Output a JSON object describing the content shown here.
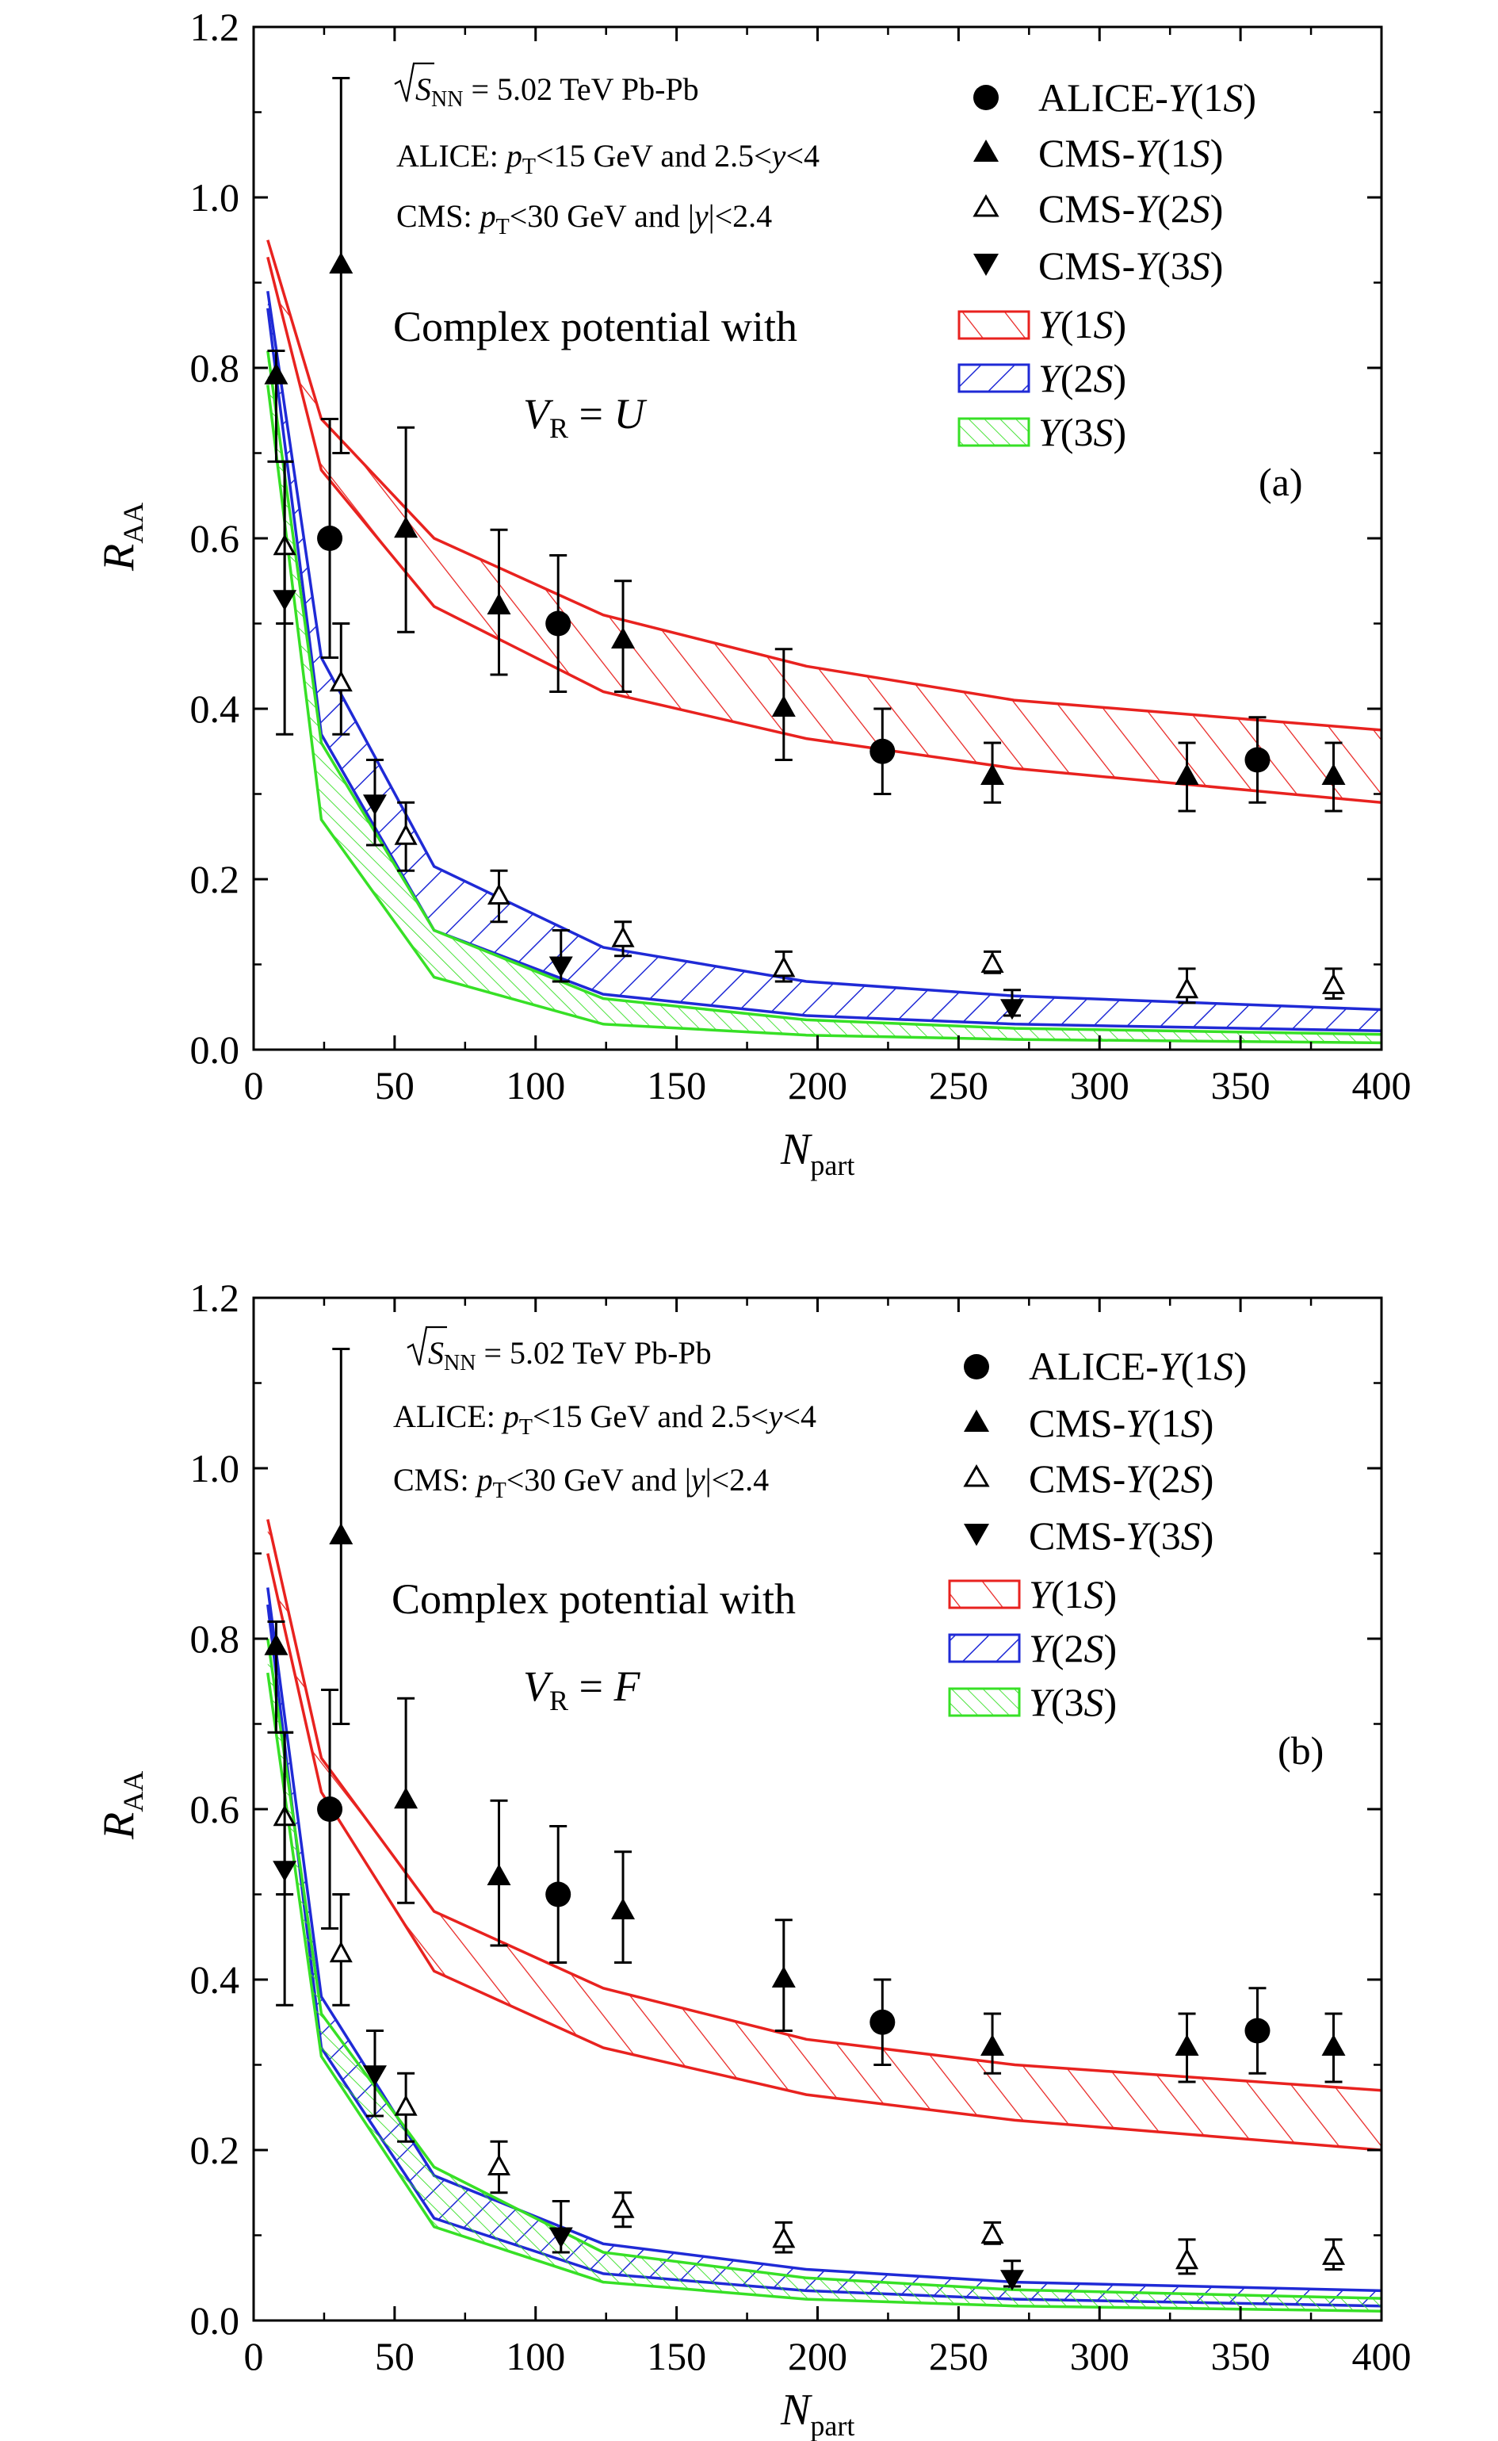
{
  "colors": {
    "s1": "#e8221f",
    "s2": "#1f2ad6",
    "s3": "#37e026",
    "data": "#000000"
  },
  "chart_data": [
    {
      "type": "scatter",
      "panel": "(a)",
      "xlabel": "N",
      "xlabel_sub": "part",
      "ylabel": "R",
      "ylabel_sub": "AA",
      "xlim": [
        0,
        400
      ],
      "ylim": [
        0.0,
        1.2
      ],
      "xticks": [
        "0",
        "50",
        "100",
        "150",
        "200",
        "250",
        "300",
        "350",
        "400"
      ],
      "yticks": [
        "0.0",
        "0.2",
        "0.4",
        "0.6",
        "0.8",
        "1.0",
        "1.2"
      ],
      "info": {
        "energy_pre": "S",
        "energy_sub": "NN",
        "energy_post": " = 5.02 TeV   Pb-Pb",
        "alice_a": "ALICE: ",
        "alice_p": "p",
        "alice_sub": "T",
        "alice_b": "<15 GeV and 2.5<",
        "alice_y": "y",
        "alice_c": "<4",
        "cms_a": "CMS: ",
        "cms_p": "p",
        "cms_sub": "T",
        "cms_b": "<30 GeV and |",
        "cms_y": "y",
        "cms_c": "|<2.4"
      },
      "model": {
        "line1": "Complex potential with",
        "v": "V",
        "v_sub": "R",
        "rest": " = ",
        "sym": "U"
      },
      "legend": {
        "alice1s": "ALICE-",
        "cms1s": "CMS-",
        "cms2s": "CMS-",
        "cms3s": "CMS-",
        "Y": "Υ",
        "n1": "(1",
        "n2": "(2",
        "n3": "(3",
        "S": "S",
        "close": ")"
      },
      "data_points": {
        "alice_1s": [
          {
            "x": 27,
            "y": 0.6,
            "lo": 0.46,
            "hi": 0.74
          },
          {
            "x": 108,
            "y": 0.5,
            "lo": 0.42,
            "hi": 0.58
          },
          {
            "x": 223,
            "y": 0.35,
            "lo": 0.3,
            "hi": 0.4
          },
          {
            "x": 356,
            "y": 0.34,
            "lo": 0.29,
            "hi": 0.39
          }
        ],
        "cms_1s": [
          {
            "x": 8,
            "y": 0.79,
            "lo": 0.69,
            "hi": 0.82
          },
          {
            "x": 31,
            "y": 0.92,
            "lo": 0.7,
            "hi": 1.14
          },
          {
            "x": 54,
            "y": 0.61,
            "lo": 0.49,
            "hi": 0.73
          },
          {
            "x": 87,
            "y": 0.52,
            "lo": 0.44,
            "hi": 0.61
          },
          {
            "x": 131,
            "y": 0.48,
            "lo": 0.42,
            "hi": 0.55
          },
          {
            "x": 188,
            "y": 0.4,
            "lo": 0.34,
            "hi": 0.47
          },
          {
            "x": 262,
            "y": 0.32,
            "lo": 0.29,
            "hi": 0.36
          },
          {
            "x": 331,
            "y": 0.32,
            "lo": 0.28,
            "hi": 0.36
          },
          {
            "x": 383,
            "y": 0.32,
            "lo": 0.28,
            "hi": 0.36
          }
        ],
        "cms_2s": [
          {
            "x": 11,
            "y": 0.59,
            "lo": 0.5,
            "hi": 0.69
          },
          {
            "x": 31,
            "y": 0.43,
            "lo": 0.37,
            "hi": 0.5
          },
          {
            "x": 54,
            "y": 0.25,
            "lo": 0.21,
            "hi": 0.29
          },
          {
            "x": 87,
            "y": 0.18,
            "lo": 0.15,
            "hi": 0.21
          },
          {
            "x": 131,
            "y": 0.13,
            "lo": 0.11,
            "hi": 0.15
          },
          {
            "x": 188,
            "y": 0.095,
            "lo": 0.08,
            "hi": 0.115
          },
          {
            "x": 262,
            "y": 0.1,
            "lo": 0.09,
            "hi": 0.115
          },
          {
            "x": 331,
            "y": 0.07,
            "lo": 0.055,
            "hi": 0.095
          },
          {
            "x": 383,
            "y": 0.075,
            "lo": 0.06,
            "hi": 0.095
          }
        ],
        "cms_3s": [
          {
            "x": 11,
            "y": 0.53,
            "lo": 0.37,
            "hi": 0.69
          },
          {
            "x": 43,
            "y": 0.29,
            "lo": 0.24,
            "hi": 0.34
          },
          {
            "x": 109,
            "y": 0.1,
            "lo": 0.08,
            "hi": 0.14
          },
          {
            "x": 269,
            "y": 0.05,
            "lo": 0.04,
            "hi": 0.07
          }
        ]
      },
      "bands": {
        "s1": {
          "x": [
            5,
            24,
            64,
            124,
            196,
            270,
            400
          ],
          "upper": [
            0.95,
            0.74,
            0.6,
            0.51,
            0.45,
            0.41,
            0.375
          ],
          "lower": [
            0.93,
            0.68,
            0.52,
            0.42,
            0.365,
            0.33,
            0.29
          ]
        },
        "s2": {
          "x": [
            5,
            24,
            64,
            124,
            196,
            270,
            400
          ],
          "upper": [
            0.89,
            0.46,
            0.215,
            0.12,
            0.08,
            0.063,
            0.047
          ],
          "lower": [
            0.87,
            0.37,
            0.14,
            0.065,
            0.04,
            0.03,
            0.022
          ]
        },
        "s3": {
          "x": [
            5,
            24,
            64,
            124,
            196,
            270,
            400
          ],
          "upper": [
            0.82,
            0.36,
            0.14,
            0.06,
            0.035,
            0.025,
            0.018
          ],
          "lower": [
            0.78,
            0.27,
            0.085,
            0.03,
            0.017,
            0.012,
            0.008
          ]
        }
      }
    },
    {
      "type": "scatter",
      "panel": "(b)",
      "xlabel": "N",
      "xlabel_sub": "part",
      "ylabel": "R",
      "ylabel_sub": "AA",
      "xlim": [
        0,
        400
      ],
      "ylim": [
        0.0,
        1.2
      ],
      "xticks": [
        "0",
        "50",
        "100",
        "150",
        "200",
        "250",
        "300",
        "350",
        "400"
      ],
      "yticks": [
        "0.0",
        "0.2",
        "0.4",
        "0.6",
        "0.8",
        "1.0",
        "1.2"
      ],
      "info": {
        "energy_pre": "S",
        "energy_sub": "NN",
        "energy_post": " = 5.02 TeV   Pb-Pb",
        "alice_a": "ALICE: ",
        "alice_p": "p",
        "alice_sub": "T",
        "alice_b": "<15 GeV and 2.5<",
        "alice_y": "y",
        "alice_c": "<4",
        "cms_a": "CMS: ",
        "cms_p": "p",
        "cms_sub": "T",
        "cms_b": "<30 GeV and |",
        "cms_y": "y",
        "cms_c": "|<2.4"
      },
      "model": {
        "line1": "Complex potential with",
        "v": "V",
        "v_sub": "R",
        "rest": " = ",
        "sym": "F"
      },
      "legend": {
        "alice1s": "ALICE-",
        "cms1s": "CMS-",
        "cms2s": "CMS-",
        "cms3s": "CMS-",
        "Y": "Υ",
        "n1": "(1",
        "n2": "(2",
        "n3": "(3",
        "S": "S",
        "close": ")"
      },
      "data_points": {
        "alice_1s": [
          {
            "x": 27,
            "y": 0.6,
            "lo": 0.46,
            "hi": 0.74
          },
          {
            "x": 108,
            "y": 0.5,
            "lo": 0.42,
            "hi": 0.58
          },
          {
            "x": 223,
            "y": 0.35,
            "lo": 0.3,
            "hi": 0.4
          },
          {
            "x": 356,
            "y": 0.34,
            "lo": 0.29,
            "hi": 0.39
          }
        ],
        "cms_1s": [
          {
            "x": 8,
            "y": 0.79,
            "lo": 0.69,
            "hi": 0.82
          },
          {
            "x": 31,
            "y": 0.92,
            "lo": 0.7,
            "hi": 1.14
          },
          {
            "x": 54,
            "y": 0.61,
            "lo": 0.49,
            "hi": 0.73
          },
          {
            "x": 87,
            "y": 0.52,
            "lo": 0.44,
            "hi": 0.61
          },
          {
            "x": 131,
            "y": 0.48,
            "lo": 0.42,
            "hi": 0.55
          },
          {
            "x": 188,
            "y": 0.4,
            "lo": 0.34,
            "hi": 0.47
          },
          {
            "x": 262,
            "y": 0.32,
            "lo": 0.29,
            "hi": 0.36
          },
          {
            "x": 331,
            "y": 0.32,
            "lo": 0.28,
            "hi": 0.36
          },
          {
            "x": 383,
            "y": 0.32,
            "lo": 0.28,
            "hi": 0.36
          }
        ],
        "cms_2s": [
          {
            "x": 11,
            "y": 0.59,
            "lo": 0.5,
            "hi": 0.69
          },
          {
            "x": 31,
            "y": 0.43,
            "lo": 0.37,
            "hi": 0.5
          },
          {
            "x": 54,
            "y": 0.25,
            "lo": 0.21,
            "hi": 0.29
          },
          {
            "x": 87,
            "y": 0.18,
            "lo": 0.15,
            "hi": 0.21
          },
          {
            "x": 131,
            "y": 0.13,
            "lo": 0.11,
            "hi": 0.15
          },
          {
            "x": 188,
            "y": 0.095,
            "lo": 0.08,
            "hi": 0.115
          },
          {
            "x": 262,
            "y": 0.1,
            "lo": 0.09,
            "hi": 0.115
          },
          {
            "x": 331,
            "y": 0.07,
            "lo": 0.055,
            "hi": 0.095
          },
          {
            "x": 383,
            "y": 0.075,
            "lo": 0.06,
            "hi": 0.095
          }
        ],
        "cms_3s": [
          {
            "x": 11,
            "y": 0.53,
            "lo": 0.37,
            "hi": 0.69
          },
          {
            "x": 43,
            "y": 0.29,
            "lo": 0.24,
            "hi": 0.34
          },
          {
            "x": 109,
            "y": 0.1,
            "lo": 0.08,
            "hi": 0.14
          },
          {
            "x": 269,
            "y": 0.05,
            "lo": 0.04,
            "hi": 0.07
          }
        ]
      },
      "bands": {
        "s1": {
          "x": [
            5,
            24,
            64,
            124,
            196,
            270,
            400
          ],
          "upper": [
            0.94,
            0.66,
            0.48,
            0.39,
            0.33,
            0.3,
            0.27
          ],
          "lower": [
            0.9,
            0.62,
            0.41,
            0.32,
            0.265,
            0.235,
            0.2
          ]
        },
        "s2": {
          "x": [
            5,
            24,
            64,
            124,
            196,
            270,
            400
          ],
          "upper": [
            0.86,
            0.38,
            0.17,
            0.09,
            0.06,
            0.045,
            0.035
          ],
          "lower": [
            0.84,
            0.32,
            0.12,
            0.055,
            0.035,
            0.025,
            0.017
          ]
        },
        "s3": {
          "x": [
            5,
            24,
            64,
            124,
            196,
            270,
            400
          ],
          "upper": [
            0.8,
            0.36,
            0.18,
            0.08,
            0.05,
            0.036,
            0.026
          ],
          "lower": [
            0.76,
            0.31,
            0.11,
            0.045,
            0.025,
            0.017,
            0.011
          ]
        }
      }
    }
  ]
}
